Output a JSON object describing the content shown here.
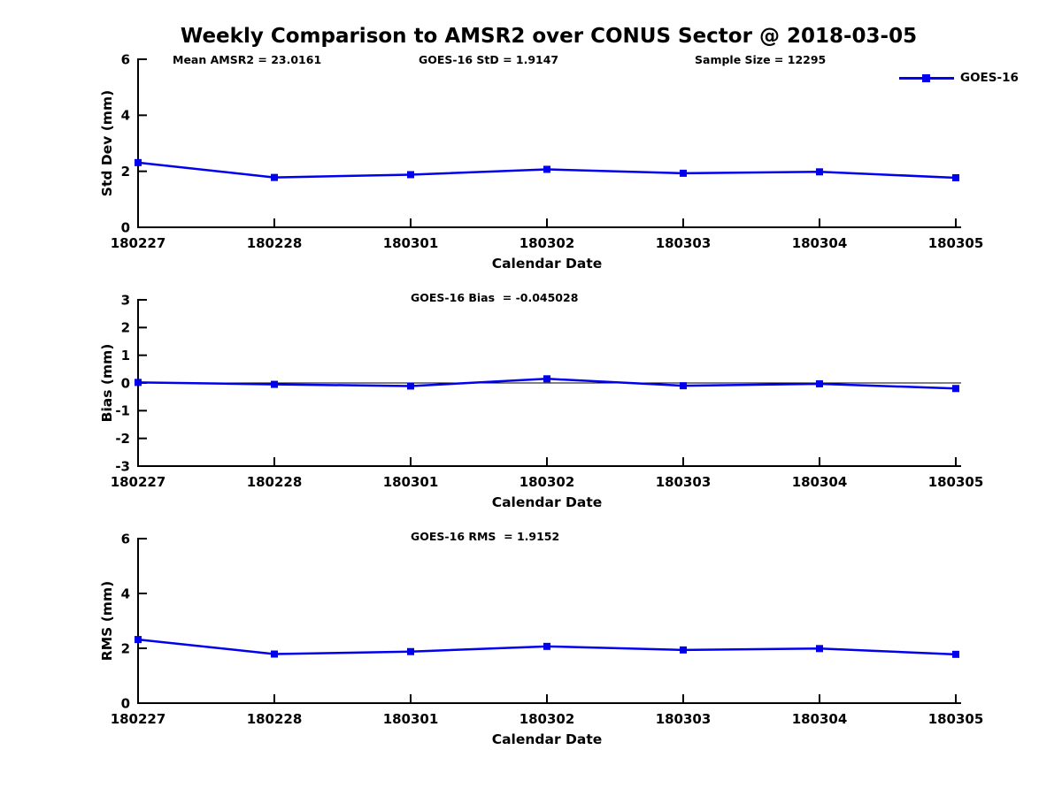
{
  "title": "Weekly Comparison to AMSR2 over CONUS Sector @ 2018-03-05",
  "legend": {
    "label": "GOES-16",
    "color": "#0000ee"
  },
  "chart_data": [
    {
      "type": "line",
      "name": "std-dev-panel",
      "ylabel": "Std Dev (mm)",
      "xlabel": "Calendar Date",
      "categories": [
        "180227",
        "180228",
        "180301",
        "180302",
        "180303",
        "180304",
        "180305"
      ],
      "series": [
        {
          "name": "GOES-16",
          "color": "#0000ee",
          "marker": "square",
          "values": [
            2.31,
            1.78,
            1.88,
            2.07,
            1.93,
            1.98,
            1.77
          ]
        }
      ],
      "ylim": [
        0,
        6
      ],
      "yticks": [
        0,
        2,
        4,
        6
      ],
      "zero_line": false,
      "grid": false,
      "legend_position": "top-right-outside",
      "annotations": [
        "Mean AMSR2 = 23.0161",
        "GOES-16 StD = 1.9147",
        "Sample Size = 12295"
      ]
    },
    {
      "type": "line",
      "name": "bias-panel",
      "ylabel": "Bias (mm)",
      "xlabel": "Calendar Date",
      "categories": [
        "180227",
        "180228",
        "180301",
        "180302",
        "180303",
        "180304",
        "180305"
      ],
      "series": [
        {
          "name": "GOES-16",
          "color": "#0000ee",
          "marker": "square",
          "values": [
            0.02,
            -0.05,
            -0.11,
            0.15,
            -0.1,
            -0.03,
            -0.2
          ]
        }
      ],
      "ylim": [
        -3,
        3
      ],
      "yticks": [
        -3,
        -2,
        -1,
        0,
        1,
        2,
        3
      ],
      "zero_line": true,
      "grid": false,
      "annotations": [
        "GOES-16 Bias  = -0.045028"
      ]
    },
    {
      "type": "line",
      "name": "rms-panel",
      "ylabel": "RMS (mm)",
      "xlabel": "Calendar Date",
      "categories": [
        "180227",
        "180228",
        "180301",
        "180302",
        "180303",
        "180304",
        "180305"
      ],
      "series": [
        {
          "name": "GOES-16",
          "color": "#0000ee",
          "marker": "square",
          "values": [
            2.32,
            1.79,
            1.88,
            2.07,
            1.94,
            1.99,
            1.78
          ]
        }
      ],
      "ylim": [
        0,
        6
      ],
      "yticks": [
        0,
        2,
        4,
        6
      ],
      "zero_line": false,
      "grid": false,
      "annotations": [
        "GOES-16 RMS  = 1.9152"
      ]
    }
  ]
}
